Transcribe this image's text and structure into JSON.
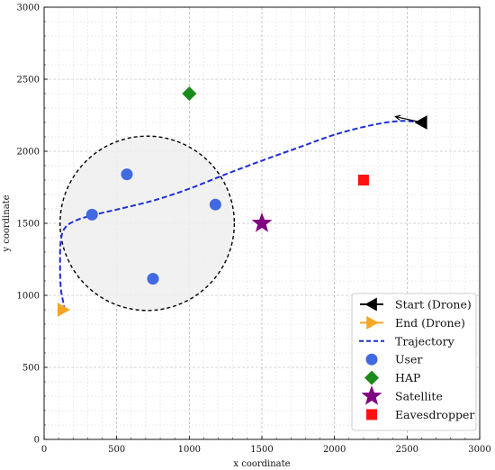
{
  "chart_data": {
    "type": "scatter",
    "xlabel": "x coordinate",
    "ylabel": "y coordinate",
    "xlim": [
      0,
      3000
    ],
    "ylim": [
      0,
      3000
    ],
    "xticks": [
      0,
      500,
      1000,
      1500,
      2000,
      2500,
      3000
    ],
    "yticks": [
      0,
      500,
      1000,
      1500,
      2000,
      2500,
      3000
    ],
    "grid": true,
    "legend_placement": "bottom-right",
    "circle": {
      "center": [
        710,
        1500
      ],
      "radius": 600,
      "fill": "#eeeeee",
      "stroke": "#000000",
      "style": "dashed"
    },
    "trajectory": {
      "name": "Trajectory",
      "color": "#1f2fd6",
      "style": "dashed",
      "points": [
        [
          2600,
          2200
        ],
        [
          2450,
          2210
        ],
        [
          2250,
          2180
        ],
        [
          2000,
          2115
        ],
        [
          1750,
          2025
        ],
        [
          1500,
          1935
        ],
        [
          1250,
          1840
        ],
        [
          1000,
          1740
        ],
        [
          760,
          1660
        ],
        [
          520,
          1600
        ],
        [
          350,
          1560
        ],
        [
          220,
          1520
        ],
        [
          145,
          1470
        ],
        [
          115,
          1380
        ],
        [
          110,
          1200
        ],
        [
          115,
          1050
        ],
        [
          130,
          960
        ],
        [
          140,
          910
        ]
      ]
    },
    "start_arrow": {
      "from": [
        2600,
        2200
      ],
      "to": [
        2420,
        2240
      ]
    },
    "series": [
      {
        "name": "Start (Drone)",
        "marker": "triangle-left",
        "color": "#000000",
        "points": [
          [
            2600,
            2200
          ]
        ]
      },
      {
        "name": "End (Drone)",
        "marker": "triangle-right",
        "color": "#f5a623",
        "points": [
          [
            130,
            900
          ]
        ]
      },
      {
        "name": "User",
        "marker": "circle",
        "color": "#4169e1",
        "points": [
          [
            570,
            1840
          ],
          [
            330,
            1560
          ],
          [
            1180,
            1630
          ],
          [
            750,
            1115
          ]
        ]
      },
      {
        "name": "HAP",
        "marker": "diamond",
        "color": "#1a8a1a",
        "points": [
          [
            1000,
            2400
          ]
        ]
      },
      {
        "name": "Satellite",
        "marker": "star",
        "color": "#800080",
        "points": [
          [
            1500,
            1500
          ]
        ]
      },
      {
        "name": "Eavesdropper",
        "marker": "square",
        "color": "#ff1010",
        "points": [
          [
            2200,
            1800
          ]
        ]
      }
    ],
    "legend": [
      {
        "label": "Start (Drone)",
        "kind": "start"
      },
      {
        "label": "End (Drone)",
        "kind": "end"
      },
      {
        "label": "Trajectory",
        "kind": "trajectory"
      },
      {
        "label": "User",
        "kind": "user"
      },
      {
        "label": "HAP",
        "kind": "hap"
      },
      {
        "label": "Satellite",
        "kind": "satellite"
      },
      {
        "label": "Eavesdropper",
        "kind": "eavesdropper"
      }
    ]
  }
}
